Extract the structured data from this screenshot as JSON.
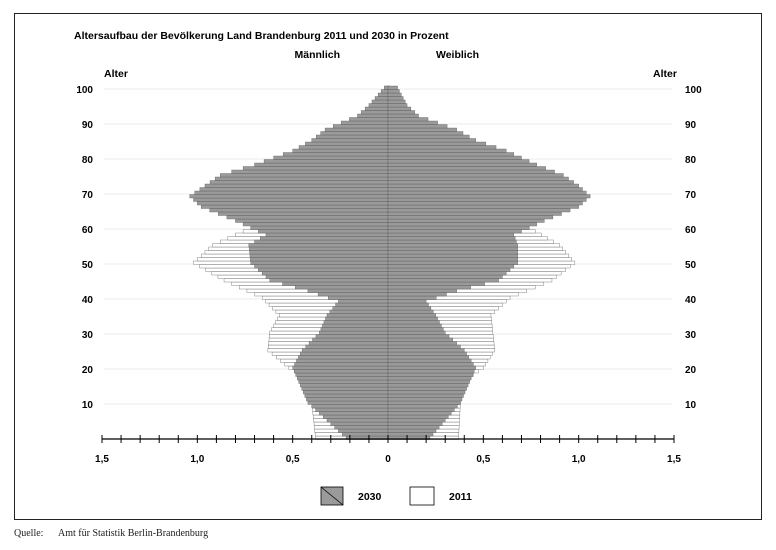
{
  "chart_data": {
    "type": "bar",
    "title": "Altersaufbau der Bevölkerung Land Brandenburg 2011 und 2030 in Prozent",
    "left_group": "Männlich",
    "right_group": "Weiblich",
    "ylabel_left": "Alter",
    "ylabel_right": "Alter",
    "y_ticks": [
      "10",
      "20",
      "30",
      "40",
      "50",
      "60",
      "70",
      "80",
      "90",
      "100"
    ],
    "x_ticks": [
      "1,5",
      "1,0",
      "0,5",
      "0",
      "0,5",
      "1,0",
      "1,5"
    ],
    "xlim": [
      -1.5,
      1.5
    ],
    "ylim": [
      0,
      100
    ],
    "ages": [
      0,
      100
    ],
    "series": [
      {
        "name": "2030",
        "color": "#9a9a9a",
        "male": [
          [
            0,
            0.22
          ],
          [
            10,
            0.42
          ],
          [
            15,
            0.46
          ],
          [
            20,
            0.5
          ],
          [
            25,
            0.45
          ],
          [
            30,
            0.36
          ],
          [
            35,
            0.32
          ],
          [
            39,
            0.26
          ],
          [
            42,
            0.42
          ],
          [
            45,
            0.62
          ],
          [
            50,
            0.72
          ],
          [
            55,
            0.73
          ],
          [
            58,
            0.64
          ],
          [
            62,
            0.8
          ],
          [
            66,
            0.98
          ],
          [
            69,
            1.04
          ],
          [
            72,
            0.96
          ],
          [
            75,
            0.88
          ],
          [
            78,
            0.7
          ],
          [
            82,
            0.5
          ],
          [
            85,
            0.4
          ],
          [
            88,
            0.33
          ],
          [
            92,
            0.16
          ],
          [
            95,
            0.1
          ],
          [
            100,
            0.02
          ]
        ],
        "female": [
          [
            0,
            0.22
          ],
          [
            10,
            0.38
          ],
          [
            15,
            0.42
          ],
          [
            20,
            0.46
          ],
          [
            25,
            0.4
          ],
          [
            30,
            0.3
          ],
          [
            35,
            0.25
          ],
          [
            39,
            0.2
          ],
          [
            42,
            0.36
          ],
          [
            45,
            0.58
          ],
          [
            50,
            0.68
          ],
          [
            55,
            0.68
          ],
          [
            58,
            0.66
          ],
          [
            62,
            0.82
          ],
          [
            66,
            1.0
          ],
          [
            69,
            1.06
          ],
          [
            72,
            1.0
          ],
          [
            75,
            0.92
          ],
          [
            78,
            0.78
          ],
          [
            82,
            0.62
          ],
          [
            85,
            0.46
          ],
          [
            88,
            0.36
          ],
          [
            92,
            0.16
          ],
          [
            95,
            0.1
          ],
          [
            100,
            0.05
          ]
        ]
      },
      {
        "name": "2011",
        "color": "#ffffff",
        "male": [
          [
            0,
            0.38
          ],
          [
            10,
            0.4
          ],
          [
            15,
            0.38
          ],
          [
            20,
            0.52
          ],
          [
            25,
            0.63
          ],
          [
            30,
            0.62
          ],
          [
            35,
            0.57
          ],
          [
            40,
            0.66
          ],
          [
            45,
            0.86
          ],
          [
            50,
            1.02
          ],
          [
            55,
            0.92
          ],
          [
            60,
            0.72
          ],
          [
            65,
            0.5
          ],
          [
            70,
            0.4
          ],
          [
            75,
            0.32
          ],
          [
            80,
            0.22
          ],
          [
            85,
            0.12
          ],
          [
            90,
            0.04
          ],
          [
            95,
            0.02
          ],
          [
            100,
            0.01
          ]
        ],
        "female": [
          [
            0,
            0.37
          ],
          [
            10,
            0.38
          ],
          [
            15,
            0.37
          ],
          [
            20,
            0.5
          ],
          [
            25,
            0.56
          ],
          [
            30,
            0.55
          ],
          [
            35,
            0.54
          ],
          [
            40,
            0.64
          ],
          [
            45,
            0.86
          ],
          [
            50,
            0.98
          ],
          [
            55,
            0.9
          ],
          [
            60,
            0.74
          ],
          [
            65,
            0.56
          ],
          [
            70,
            0.48
          ],
          [
            75,
            0.42
          ],
          [
            80,
            0.32
          ],
          [
            85,
            0.22
          ],
          [
            90,
            0.08
          ],
          [
            95,
            0.03
          ],
          [
            100,
            0.01
          ]
        ]
      }
    ],
    "legend_position": "bottom-center",
    "grid": true
  },
  "source": {
    "label": "Quelle:",
    "text": "Amt für Statistik Berlin-Brandenburg"
  }
}
